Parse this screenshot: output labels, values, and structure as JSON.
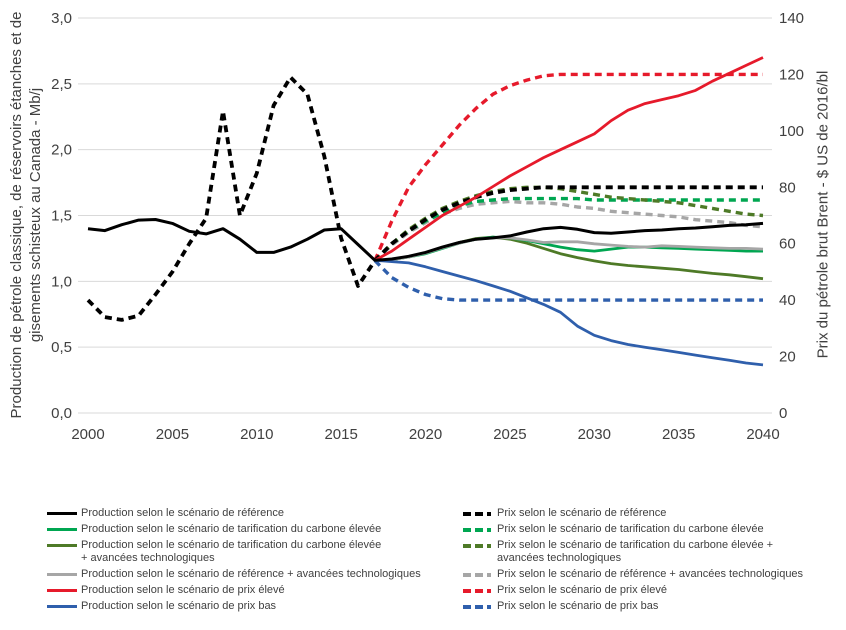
{
  "chart_data": {
    "type": "line",
    "title": "",
    "x_axis": {
      "range": [
        2000,
        2040
      ],
      "ticks": [
        "2000",
        "2005",
        "2010",
        "2015",
        "2020",
        "2025",
        "2030",
        "2035",
        "2040"
      ]
    },
    "left_axis": {
      "title": "Production de pétrole classique, de réservoirs étanches et de gisements schisteux au Canada - Mb/j",
      "title_lines": [
        "Production de pétrole classique, de réservoirs étanches et de gisements schisteux au Canada - Mb/j"
      ],
      "range": [
        0,
        3
      ],
      "step": 0.5,
      "tick_labels": [
        "0,0",
        "0,5",
        "1,0",
        "1,5",
        "2,0",
        "2,5",
        "3,0"
      ]
    },
    "right_axis": {
      "title": "Prix du pétrole brut Brent - $ US de 2016/bl",
      "range": [
        0,
        140
      ],
      "step": 20,
      "tick_labels": [
        "0",
        "20",
        "40",
        "60",
        "80",
        "100",
        "120",
        "140"
      ]
    },
    "grid": "horizontal",
    "gridline_color": "#D9D9D9",
    "tick_label_color": "#404040",
    "legend_position": "bottom-two-columns",
    "series": [
      {
        "label": "Production selon le scénario de référence",
        "color": "#000000",
        "style": "solid",
        "axis": "production",
        "start_year": 2000,
        "values": [
          1.4,
          1.385,
          1.43,
          1.465,
          1.47,
          1.44,
          1.38,
          1.36,
          1.4,
          1.32,
          1.22,
          1.22,
          1.26,
          1.32,
          1.39,
          1.4,
          1.28,
          1.16,
          1.17,
          1.19,
          1.22,
          1.26,
          1.295,
          1.32,
          1.33,
          1.345,
          1.375,
          1.4,
          1.41,
          1.395,
          1.37,
          1.365,
          1.375,
          1.385,
          1.39,
          1.4,
          1.405,
          1.415,
          1.425,
          1.43,
          1.44
        ]
      },
      {
        "label": "Production selon le scénario de tarification du carbone élevée",
        "color": "#00A651",
        "style": "solid",
        "axis": "production",
        "start_year": 2017,
        "values": [
          1.16,
          1.165,
          1.185,
          1.21,
          1.25,
          1.29,
          1.32,
          1.335,
          1.33,
          1.31,
          1.285,
          1.26,
          1.24,
          1.23,
          1.245,
          1.26,
          1.26,
          1.255,
          1.25,
          1.245,
          1.24,
          1.235,
          1.23,
          1.23
        ]
      },
      {
        "label": "Production selon le scénario de tarification du carbone élevée + avancées technologiques",
        "label_lines": [
          "Production selon le scénario de tarification du carbone élevée",
          "+ avancées technologiques"
        ],
        "color": "#4E7A27",
        "style": "solid",
        "axis": "production",
        "start_year": 2017,
        "values": [
          1.16,
          1.165,
          1.185,
          1.215,
          1.255,
          1.295,
          1.325,
          1.335,
          1.32,
          1.29,
          1.25,
          1.21,
          1.18,
          1.155,
          1.135,
          1.12,
          1.11,
          1.1,
          1.09,
          1.075,
          1.06,
          1.05,
          1.035,
          1.02
        ]
      },
      {
        "label": "Production selon le scénario de référence + avancées technologiques",
        "color": "#A6A6A6",
        "style": "solid",
        "axis": "production",
        "start_year": 2017,
        "values": [
          1.16,
          1.165,
          1.185,
          1.215,
          1.255,
          1.29,
          1.32,
          1.33,
          1.33,
          1.315,
          1.295,
          1.3,
          1.3,
          1.285,
          1.275,
          1.265,
          1.26,
          1.27,
          1.265,
          1.26,
          1.255,
          1.25,
          1.25,
          1.245
        ]
      },
      {
        "label": "Production selon le scénario de prix élevé",
        "color": "#E61A2B",
        "style": "solid",
        "axis": "production",
        "start_year": 2017,
        "values": [
          1.16,
          1.23,
          1.32,
          1.41,
          1.5,
          1.57,
          1.64,
          1.72,
          1.8,
          1.87,
          1.94,
          2.0,
          2.06,
          2.12,
          2.22,
          2.3,
          2.35,
          2.38,
          2.41,
          2.45,
          2.52,
          2.58,
          2.64,
          2.7
        ]
      },
      {
        "label": "Production selon le scénario de prix bas",
        "color": "#2F5FAC",
        "style": "solid",
        "axis": "production",
        "start_year": 2017,
        "values": [
          1.16,
          1.15,
          1.14,
          1.11,
          1.075,
          1.04,
          1.005,
          0.965,
          0.925,
          0.875,
          0.825,
          0.765,
          0.66,
          0.59,
          0.55,
          0.52,
          0.5,
          0.48,
          0.46,
          0.44,
          0.42,
          0.4,
          0.38,
          0.365
        ]
      },
      {
        "label": "Prix selon le scénario de référence",
        "color": "#000000",
        "style": "dashed",
        "axis": "price",
        "start_year": 2000,
        "values": [
          40,
          34,
          33,
          34.5,
          42,
          50,
          60,
          69,
          107,
          70,
          85,
          109,
          119,
          113,
          91,
          62,
          45,
          54,
          60,
          64.5,
          68.5,
          72,
          74.5,
          76.5,
          78,
          79,
          79.5,
          80,
          80,
          80,
          80,
          80,
          80,
          80,
          80,
          80,
          80,
          80,
          80,
          80,
          80
        ]
      },
      {
        "label": "Prix selon le scénario de tarification du carbone élevée",
        "color": "#00A651",
        "style": "dashed",
        "axis": "price",
        "start_year": 2017,
        "values": [
          54,
          60,
          64.5,
          68,
          71,
          73.5,
          75,
          75.5,
          76,
          76,
          76,
          76,
          76,
          75.5,
          75.5,
          75.5,
          75.5,
          75.5,
          75.5,
          75.5,
          75.5,
          75.5,
          75.5,
          75.5
        ]
      },
      {
        "label": "Prix selon le scénario de tarification du carbone élevée + avancées technologiques",
        "label_lines": [
          "Prix selon le scénario de tarification du carbone élevée +",
          "avancées technologiques"
        ],
        "color": "#4E7A27",
        "style": "dashed",
        "axis": "price",
        "start_year": 2017,
        "values": [
          54,
          60,
          65,
          69,
          72.5,
          75,
          77,
          78.5,
          79.5,
          80,
          80,
          79.5,
          78.5,
          77.5,
          76.5,
          76,
          75.5,
          75,
          74.5,
          73.5,
          72.5,
          71.5,
          70.5,
          70
        ]
      },
      {
        "label": "Prix selon le scénario de référence + avancées technologiques",
        "color": "#A6A6A6",
        "style": "dashed",
        "axis": "price",
        "start_year": 2017,
        "values": [
          54,
          59.5,
          64,
          67.5,
          70.5,
          72.5,
          74,
          74.5,
          75,
          74.5,
          74.5,
          74,
          73,
          72.5,
          71.5,
          71,
          70.5,
          70,
          69.5,
          68.5,
          68,
          67.5,
          66.5,
          66
        ]
      },
      {
        "label": "Prix selon le scénario de prix élevé",
        "color": "#E61A2B",
        "style": "dashed",
        "axis": "price",
        "start_year": 2017,
        "values": [
          54,
          68,
          80,
          88,
          95,
          102,
          108,
          113,
          116,
          118,
          119.5,
          120,
          120,
          120,
          120,
          120,
          120,
          120,
          120,
          120,
          120,
          120,
          120,
          120
        ]
      },
      {
        "label": "Prix selon le scénario de prix bas",
        "color": "#2F5FAC",
        "style": "dashed",
        "axis": "price",
        "start_year": 2017,
        "values": [
          54,
          48,
          44.5,
          42,
          40.5,
          40,
          40,
          40,
          40,
          40,
          40,
          40,
          40,
          40,
          40,
          40,
          40,
          40,
          40,
          40,
          40,
          40,
          40,
          40
        ]
      }
    ]
  }
}
